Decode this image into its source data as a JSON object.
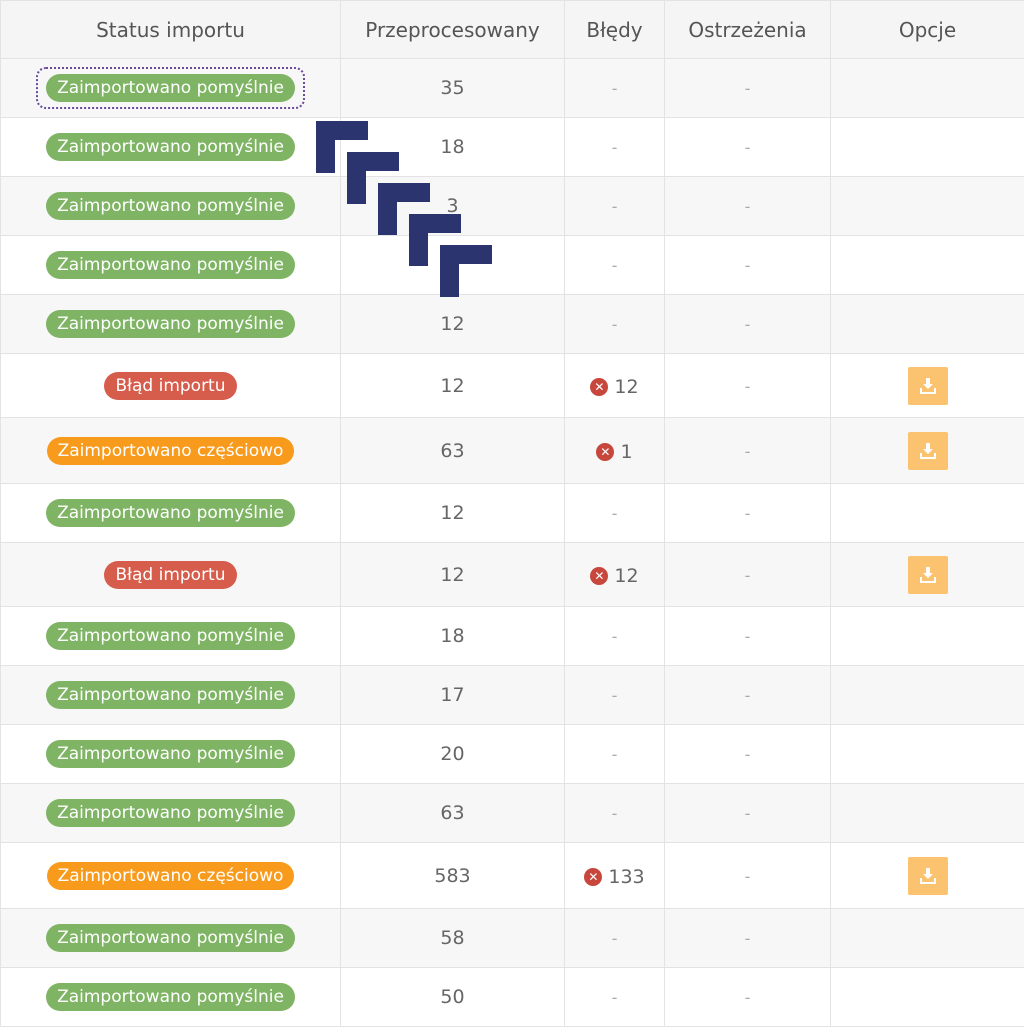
{
  "columns": [
    "Status importu",
    "Przeprocesowany",
    "Błędy",
    "Ostrzeżenia",
    "Opcje"
  ],
  "labels": {
    "success": "Zaimportowano pomyślnie",
    "error": "Błąd importu",
    "partial": "Zaimportowano częściowo",
    "dash": "-"
  },
  "colors": {
    "success": "#7fb465",
    "error": "#d65c4b",
    "partial": "#f89b1c",
    "download_button": "#fbc36f",
    "error_icon": "#c8473d",
    "overlay_arrows": "#2c3470"
  },
  "icons": {
    "error": "error-circle-icon",
    "download": "download-icon",
    "overlay": "corner-arrow-icon"
  },
  "rows": [
    {
      "status": "success",
      "processed": "35",
      "errors": null,
      "warnings": "-",
      "download": false,
      "focused": true
    },
    {
      "status": "success",
      "processed": "18",
      "errors": null,
      "warnings": "-",
      "download": false
    },
    {
      "status": "success",
      "processed": "3",
      "errors": null,
      "warnings": "-",
      "download": false
    },
    {
      "status": "success",
      "processed": "",
      "errors": null,
      "warnings": "-",
      "download": false
    },
    {
      "status": "success",
      "processed": "12",
      "errors": null,
      "warnings": "-",
      "download": false
    },
    {
      "status": "error",
      "processed": "12",
      "errors": "12",
      "warnings": "-",
      "download": true
    },
    {
      "status": "partial",
      "processed": "63",
      "errors": "1",
      "warnings": "-",
      "download": true
    },
    {
      "status": "success",
      "processed": "12",
      "errors": null,
      "warnings": "-",
      "download": false
    },
    {
      "status": "error",
      "processed": "12",
      "errors": "12",
      "warnings": "-",
      "download": true
    },
    {
      "status": "success",
      "processed": "18",
      "errors": null,
      "warnings": "-",
      "download": false
    },
    {
      "status": "success",
      "processed": "17",
      "errors": null,
      "warnings": "-",
      "download": false
    },
    {
      "status": "success",
      "processed": "20",
      "errors": null,
      "warnings": "-",
      "download": false
    },
    {
      "status": "success",
      "processed": "63",
      "errors": null,
      "warnings": "-",
      "download": false
    },
    {
      "status": "partial",
      "processed": "583",
      "errors": "133",
      "warnings": "-",
      "download": true
    },
    {
      "status": "success",
      "processed": "58",
      "errors": null,
      "warnings": "-",
      "download": false
    },
    {
      "status": "success",
      "processed": "50",
      "errors": null,
      "warnings": "-",
      "download": false
    }
  ]
}
